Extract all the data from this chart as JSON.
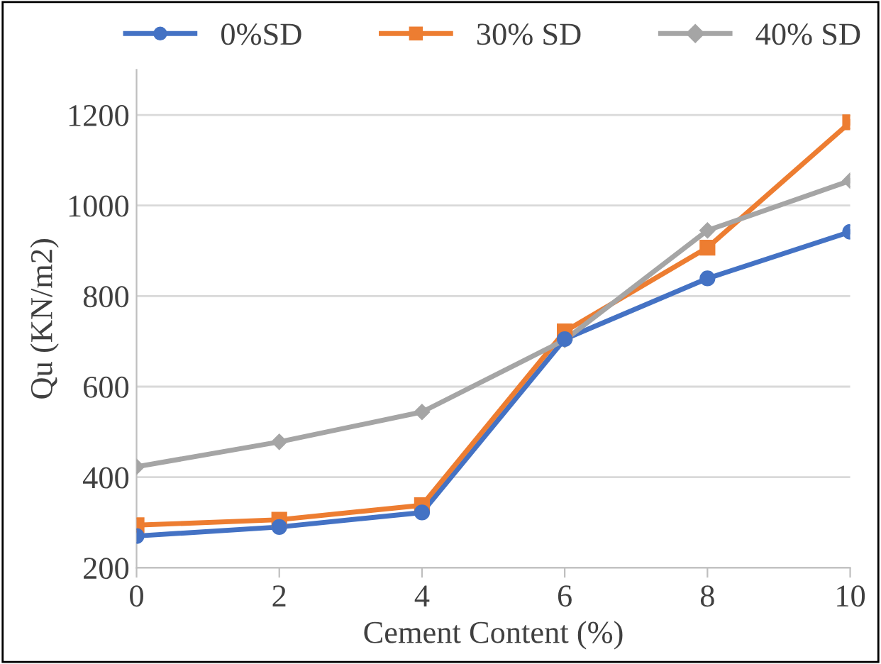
{
  "chart_data": {
    "type": "line",
    "xlabel": "Cement Content (%)",
    "ylabel": "Qu (KN/m2)",
    "x": [
      0,
      2,
      4,
      6,
      8,
      10
    ],
    "series": [
      {
        "name": "0%SD",
        "color": "#4472c4",
        "marker": "circle",
        "values": [
          270,
          290,
          322,
          705,
          839,
          942
        ]
      },
      {
        "name": "30% SD",
        "color": "#ed7d31",
        "marker": "square",
        "values": [
          294,
          306,
          338,
          722,
          907,
          1184
        ]
      },
      {
        "name": "40% SD",
        "color": "#a5a5a5",
        "marker": "diamond",
        "values": [
          423,
          478,
          544,
          703,
          945,
          1055
        ]
      }
    ],
    "xlim": [
      0,
      10
    ],
    "xticks": [
      0,
      2,
      4,
      6,
      8,
      10
    ],
    "ylim": [
      200,
      1300
    ],
    "yticks": [
      200,
      400,
      600,
      800,
      1000,
      1200
    ],
    "grid": "y",
    "legend": "top",
    "line_style": "solid"
  }
}
